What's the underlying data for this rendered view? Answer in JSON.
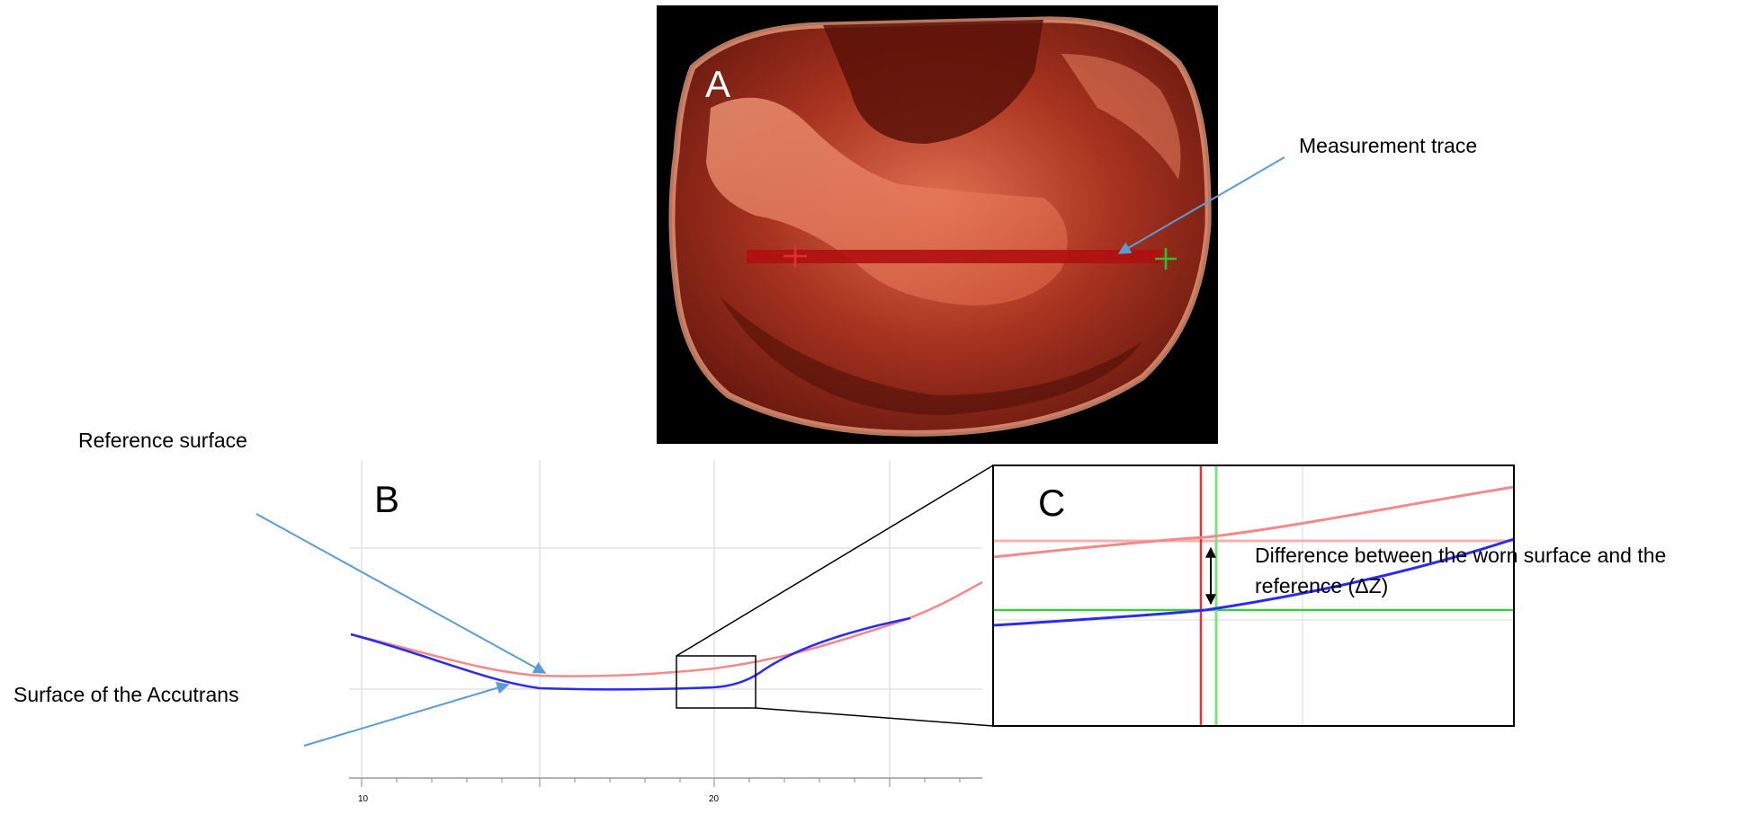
{
  "panels": {
    "a": {
      "letter": "A"
    },
    "b": {
      "letter": "B",
      "x_tick_labels": [
        "10",
        "20"
      ]
    },
    "c": {
      "letter": "C"
    }
  },
  "annotations": {
    "measurement_trace": "Measurement trace",
    "reference_surface": "Reference surface",
    "accutrans_surface": "Surface of the Accutrans",
    "difference_line1": "Difference between the worn surface and the",
    "difference_line2": "reference (ΔZ)"
  },
  "colors": {
    "reference_curve": "#f28a8a",
    "worn_curve": "#2a2af0",
    "arrow": "#5b9bd5",
    "scan_background": "#000000",
    "scan_tissue": "#c0402c",
    "marker_red": "#e03030",
    "marker_green": "#2fbf2f"
  }
}
